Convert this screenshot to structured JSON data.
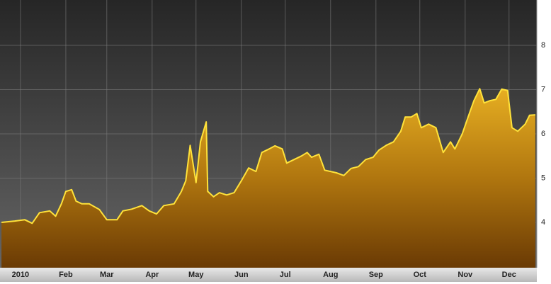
{
  "chart_data": {
    "type": "area",
    "x": [
      -13,
      -4,
      3,
      8,
      13,
      20,
      24,
      28,
      31,
      35,
      38,
      42,
      47,
      54,
      59,
      66,
      70,
      76,
      83,
      88,
      93,
      98,
      105,
      110,
      113,
      116,
      120,
      123,
      127,
      128,
      132,
      136,
      141,
      146,
      151,
      156,
      161,
      165,
      170,
      174,
      179,
      182,
      187,
      192,
      196,
      199,
      204,
      208,
      212,
      216,
      221,
      226,
      231,
      236,
      241,
      245,
      250,
      255,
      260,
      263,
      267,
      271,
      274,
      279,
      284,
      289,
      294,
      297,
      302,
      306,
      310,
      314,
      317,
      321,
      325,
      329,
      333,
      336,
      340,
      345,
      348,
      352
    ],
    "values": [
      4.0,
      4.03,
      4.06,
      3.98,
      4.22,
      4.26,
      4.14,
      4.42,
      4.7,
      4.74,
      4.48,
      4.42,
      4.42,
      4.29,
      4.06,
      4.06,
      4.26,
      4.3,
      4.38,
      4.26,
      4.19,
      4.38,
      4.42,
      4.7,
      4.94,
      5.74,
      4.9,
      5.82,
      6.27,
      4.7,
      4.58,
      4.67,
      4.62,
      4.67,
      4.94,
      5.23,
      5.15,
      5.58,
      5.66,
      5.73,
      5.66,
      5.34,
      5.42,
      5.5,
      5.58,
      5.47,
      5.54,
      5.18,
      5.15,
      5.12,
      5.06,
      5.22,
      5.26,
      5.42,
      5.47,
      5.63,
      5.74,
      5.82,
      6.06,
      6.38,
      6.38,
      6.46,
      6.14,
      6.22,
      6.14,
      5.58,
      5.82,
      5.66,
      6.0,
      6.38,
      6.75,
      7.02,
      6.7,
      6.75,
      6.78,
      7.01,
      6.98,
      6.14,
      6.06,
      6.22,
      6.42,
      6.43
    ],
    "color": "#ffe23a",
    "xlim": [
      -14,
      353
    ],
    "xticks": [
      {
        "value": 0,
        "label": "2010"
      },
      {
        "value": 31,
        "label": "Feb"
      },
      {
        "value": 59,
        "label": "Mar"
      },
      {
        "value": 90,
        "label": "Apr"
      },
      {
        "value": 120,
        "label": "May"
      },
      {
        "value": 151,
        "label": "Jun"
      },
      {
        "value": 181,
        "label": "Jul"
      },
      {
        "value": 212,
        "label": "Aug"
      },
      {
        "value": 243,
        "label": "Sep"
      },
      {
        "value": 273,
        "label": "Oct"
      },
      {
        "value": 304,
        "label": "Nov"
      },
      {
        "value": 334,
        "label": "Dec"
      }
    ],
    "ylim": [
      3,
      9
    ],
    "yticks": [
      4,
      5,
      6,
      7,
      8
    ],
    "grid": true
  }
}
